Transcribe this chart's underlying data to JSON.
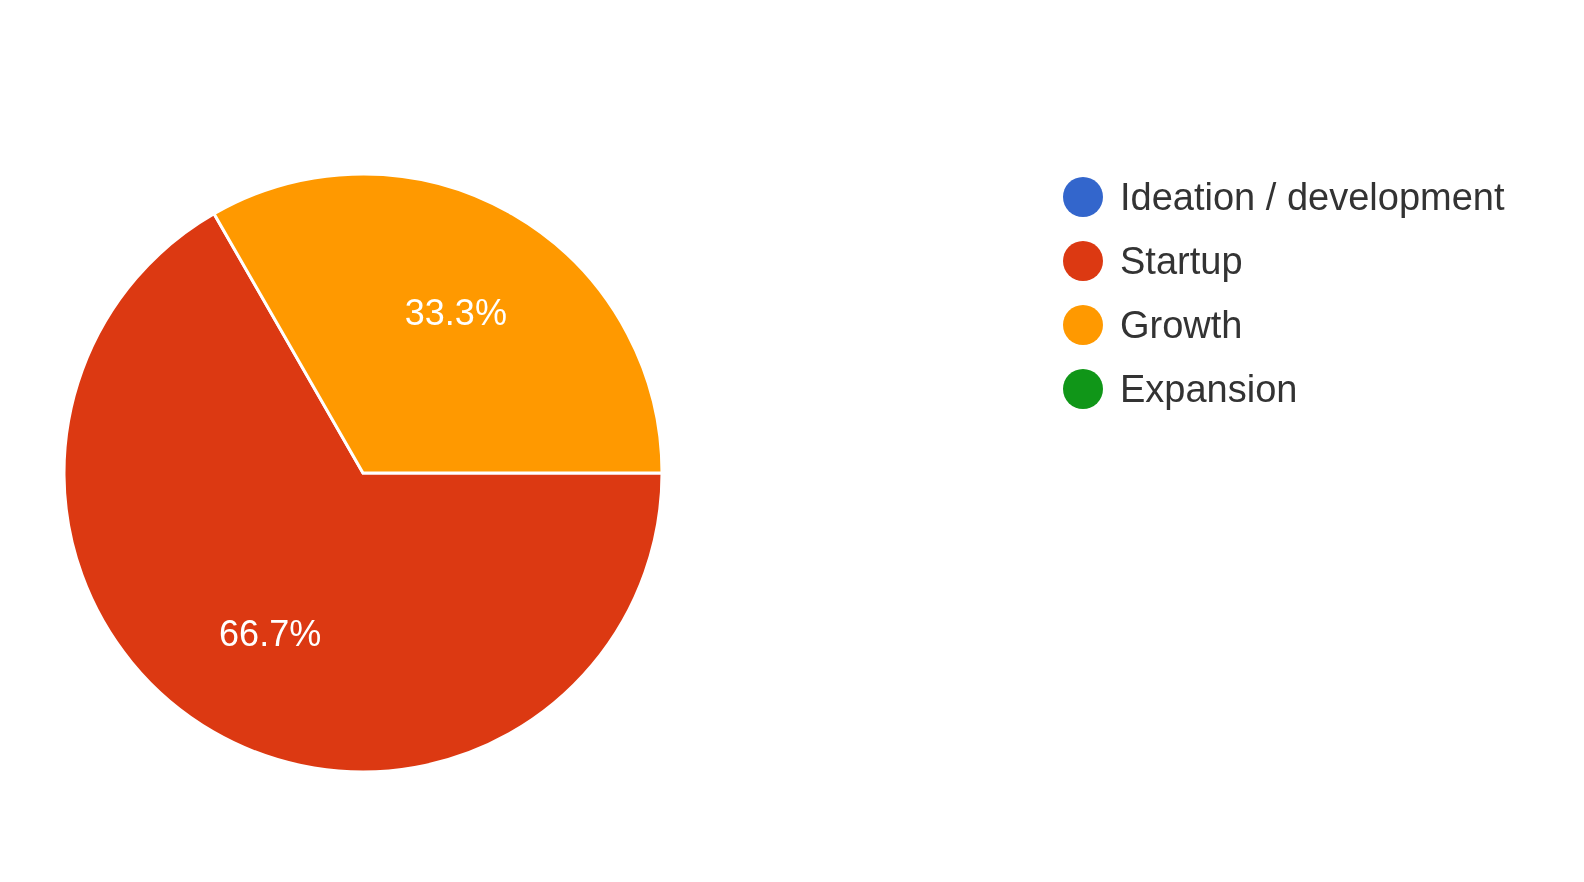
{
  "chart_data": {
    "type": "pie",
    "categories": [
      "Ideation / development",
      "Startup",
      "Growth",
      "Expansion"
    ],
    "values": [
      0,
      66.7,
      33.3,
      0
    ],
    "colors": [
      "#3366cc",
      "#dc3912",
      "#ff9900",
      "#109618"
    ],
    "value_labels": [
      null,
      "66.7%",
      "33.3%",
      null
    ],
    "legend": "right"
  }
}
